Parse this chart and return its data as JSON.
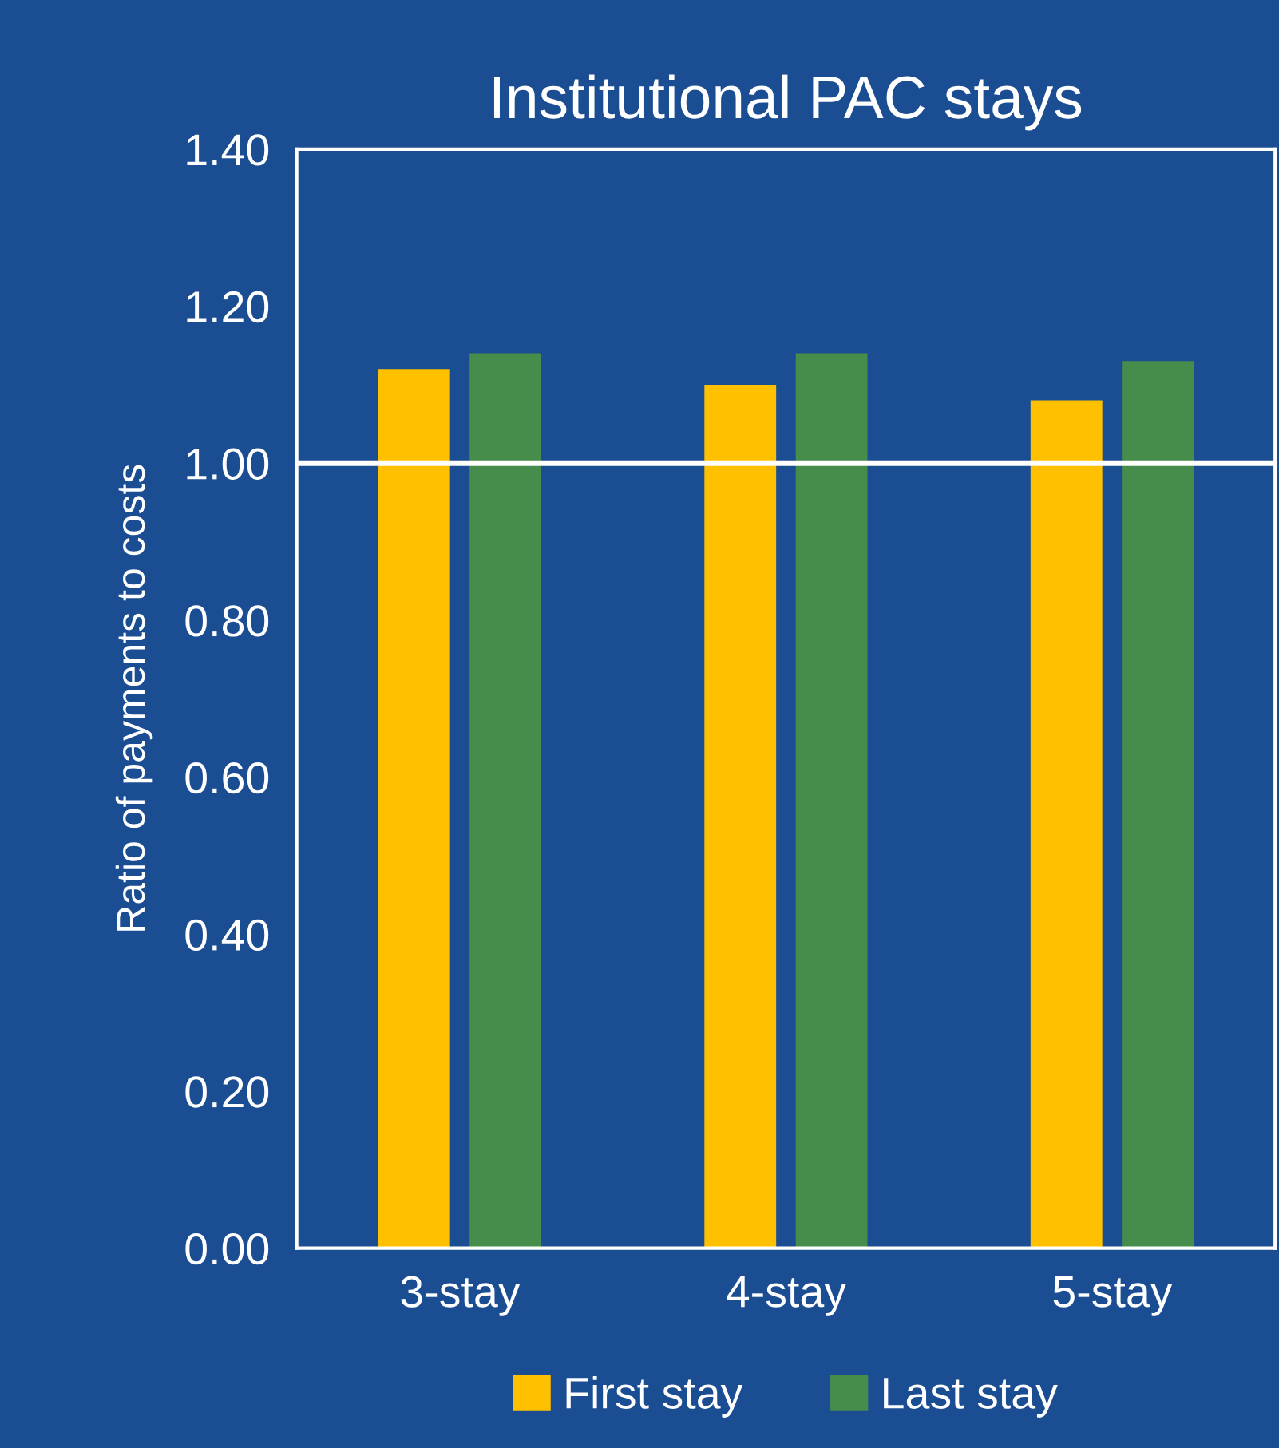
{
  "chart_data": {
    "type": "bar",
    "title": "Institutional PAC stays",
    "ylabel": "Ratio of payments to costs",
    "categories": [
      "3-stay",
      "4-stay",
      "5-stay"
    ],
    "series": [
      {
        "name": "First stay",
        "color": "#ffc000",
        "values": [
          1.12,
          1.1,
          1.08
        ]
      },
      {
        "name": "Last stay",
        "color": "#468c4b",
        "values": [
          1.14,
          1.14,
          1.13
        ]
      }
    ],
    "ylim": [
      0,
      1.4
    ],
    "yticks": [
      {
        "value": 0,
        "label": "0.00"
      },
      {
        "value": 0.2,
        "label": "0.20"
      },
      {
        "value": 0.4,
        "label": "0.40"
      },
      {
        "value": 0.6,
        "label": "0.60"
      },
      {
        "value": 0.8,
        "label": "0.80"
      },
      {
        "value": 1.0,
        "label": "1.00"
      },
      {
        "value": 1.2,
        "label": "1.20"
      },
      {
        "value": 1.4,
        "label": "1.40"
      }
    ],
    "ref_lines": [
      {
        "axis": "y",
        "value": 1.0,
        "color": "#ffffff"
      }
    ],
    "grid": false,
    "legend": "bottom"
  }
}
